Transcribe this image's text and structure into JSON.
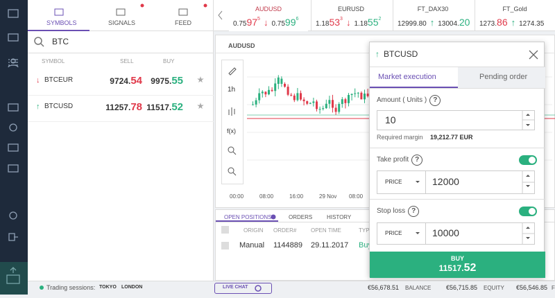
{
  "tabs": [
    "SYMBOLS",
    "SIGNALS",
    "FEED"
  ],
  "search": "BTC",
  "symbols_table": {
    "headers": [
      "SYMBOL",
      "SELL",
      "BUY"
    ],
    "rows": [
      {
        "arrow": "↓",
        "symbol": "BTCEUR",
        "sell": [
          "9724.",
          "54"
        ],
        "buy": [
          "9975.",
          "55"
        ]
      },
      {
        "arrow": "↑",
        "symbol": "BTCUSD",
        "sell": [
          "11257.",
          "78"
        ],
        "buy": [
          "11517.",
          "52"
        ]
      }
    ]
  },
  "tickers": [
    {
      "symbol": "AUDUSD",
      "sell": [
        "0.75",
        "97",
        "5"
      ],
      "arrow": "↓",
      "buy": [
        "0.75",
        "99",
        "6"
      ]
    },
    {
      "symbol": "EURUSD",
      "sell": [
        "1.18",
        "53",
        "3"
      ],
      "arrow": "↓",
      "buy": [
        "1.18",
        "55",
        "2"
      ]
    },
    {
      "symbol": "FT_DAX30",
      "sell": [
        "12999.80"
      ],
      "arrow": "↑",
      "buy": [
        "13004.",
        "20"
      ]
    },
    {
      "symbol": "FT_Gold",
      "sell": [
        "1273.",
        "86"
      ],
      "arrow": "↑",
      "buy": [
        "1274.35"
      ]
    }
  ],
  "chart": {
    "symbol": "AUDUSD",
    "tools": [
      "1h",
      "f(x)"
    ],
    "x_labels": [
      "00:00",
      "08:00",
      "16:00",
      "29 Nov",
      "08:00"
    ]
  },
  "positions": {
    "tabs": [
      "OPEN POSITIONS",
      "ORDERS",
      "HISTORY"
    ],
    "headers": [
      "ORIGIN",
      "ORDER#",
      "OPEN TIME",
      "TYPE"
    ],
    "rows": [
      [
        "Manual",
        "1144889",
        "29.11.2017",
        "Buy"
      ]
    ]
  },
  "order_dialog": {
    "arrow": "↑",
    "title": "BTCUSD",
    "tabs": [
      "Market execution",
      "Pending order"
    ],
    "help": "?",
    "amount_label": "Amount ( Units )",
    "amount": "10",
    "required_margin_label": "Required margin",
    "required_margin": "19,212.77 EUR",
    "take_profit": {
      "label": "Take profit",
      "type": "PRICE",
      "value": "12000"
    },
    "stop_loss": {
      "label": "Stop loss",
      "type": "PRICE",
      "value": "10000"
    },
    "button": {
      "label": "BUY",
      "price": [
        "11517.",
        "52"
      ]
    }
  },
  "status_bar": {
    "sessions_label": "Trading sessions:",
    "sessions": [
      "TOKYO",
      "LONDON"
    ],
    "live_chat": "LIVE CHAT",
    "balance": {
      "value": "€56,678.51",
      "label": "BALANCE"
    },
    "equity": {
      "value": "€56,715.85",
      "label": "EQUITY"
    },
    "free": {
      "value": "€56,546.85",
      "label": "FR"
    }
  }
}
